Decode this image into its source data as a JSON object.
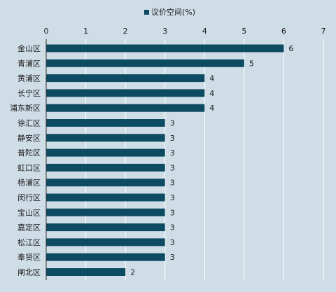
{
  "chart_data": {
    "type": "bar",
    "orientation": "horizontal",
    "legend_position": "top-center",
    "grid": true,
    "xlim": [
      0,
      7
    ],
    "x_ticks": [
      0,
      1,
      2,
      3,
      4,
      5,
      6,
      7
    ],
    "categories": [
      "金山区",
      "青浦区",
      "黄浦区",
      "长宁区",
      "浦东新区",
      "徐汇区",
      "静安区",
      "普陀区",
      "虹口区",
      "杨浦区",
      "闵行区",
      "宝山区",
      "嘉定区",
      "松江区",
      "奉贤区",
      "闸北区"
    ],
    "series": [
      {
        "name": "议价空间(%)",
        "color": "#0d4b63",
        "values": [
          6,
          5,
          4,
          4,
          4,
          3,
          3,
          3,
          3,
          3,
          3,
          3,
          3,
          3,
          3,
          2
        ]
      }
    ]
  }
}
